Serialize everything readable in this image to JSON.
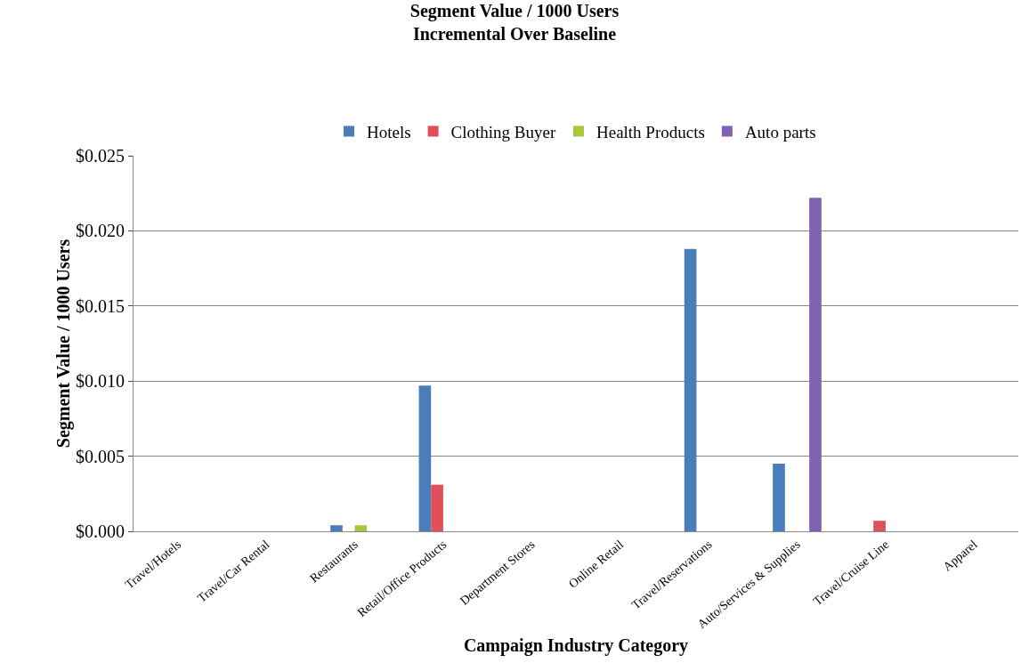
{
  "chart_data": {
    "type": "bar",
    "title": "Segment Value / 1000 Users\nIncremental Over Baseline",
    "xlabel": "Campaign Industry Category",
    "ylabel": "Segment Value / 1000 Users",
    "categories": [
      "Travel/Hotels",
      "Travel/Car Rental",
      "Restaurants",
      "Retail/Office Products",
      "Department Stores",
      "Online Retail",
      "Travel/Reservations",
      "Auto/Services & Supplies",
      "Travel/Cruise Line",
      "Apparel"
    ],
    "series": [
      {
        "name": "Hotels",
        "color": "#4a7ebb",
        "values": [
          0,
          0,
          0.0004,
          0.0097,
          0,
          0,
          0.0188,
          0.0045,
          0,
          0
        ]
      },
      {
        "name": "Clothing Buyer",
        "color": "#e0505a",
        "values": [
          0,
          0,
          0,
          0.0031,
          0,
          0,
          0,
          0,
          0.0007,
          0
        ]
      },
      {
        "name": "Health Products",
        "color": "#a8c83c",
        "values": [
          0,
          0,
          0.0004,
          0,
          0,
          0,
          0,
          0,
          0,
          0
        ]
      },
      {
        "name": "Auto parts",
        "color": "#7f62b0",
        "values": [
          0,
          0,
          0,
          0,
          0,
          0,
          0,
          0.0222,
          0,
          0
        ]
      }
    ],
    "ylim": [
      0,
      0.025
    ],
    "yticks": [
      {
        "value": 0,
        "label": "$0.000"
      },
      {
        "value": 0.005,
        "label": "$0.005"
      },
      {
        "value": 0.01,
        "label": "$0.010"
      },
      {
        "value": 0.015,
        "label": "$0.015"
      },
      {
        "value": 0.02,
        "label": "$0.020"
      },
      {
        "value": 0.025,
        "label": "$0.025"
      }
    ],
    "grid": "y",
    "legend": "top"
  }
}
